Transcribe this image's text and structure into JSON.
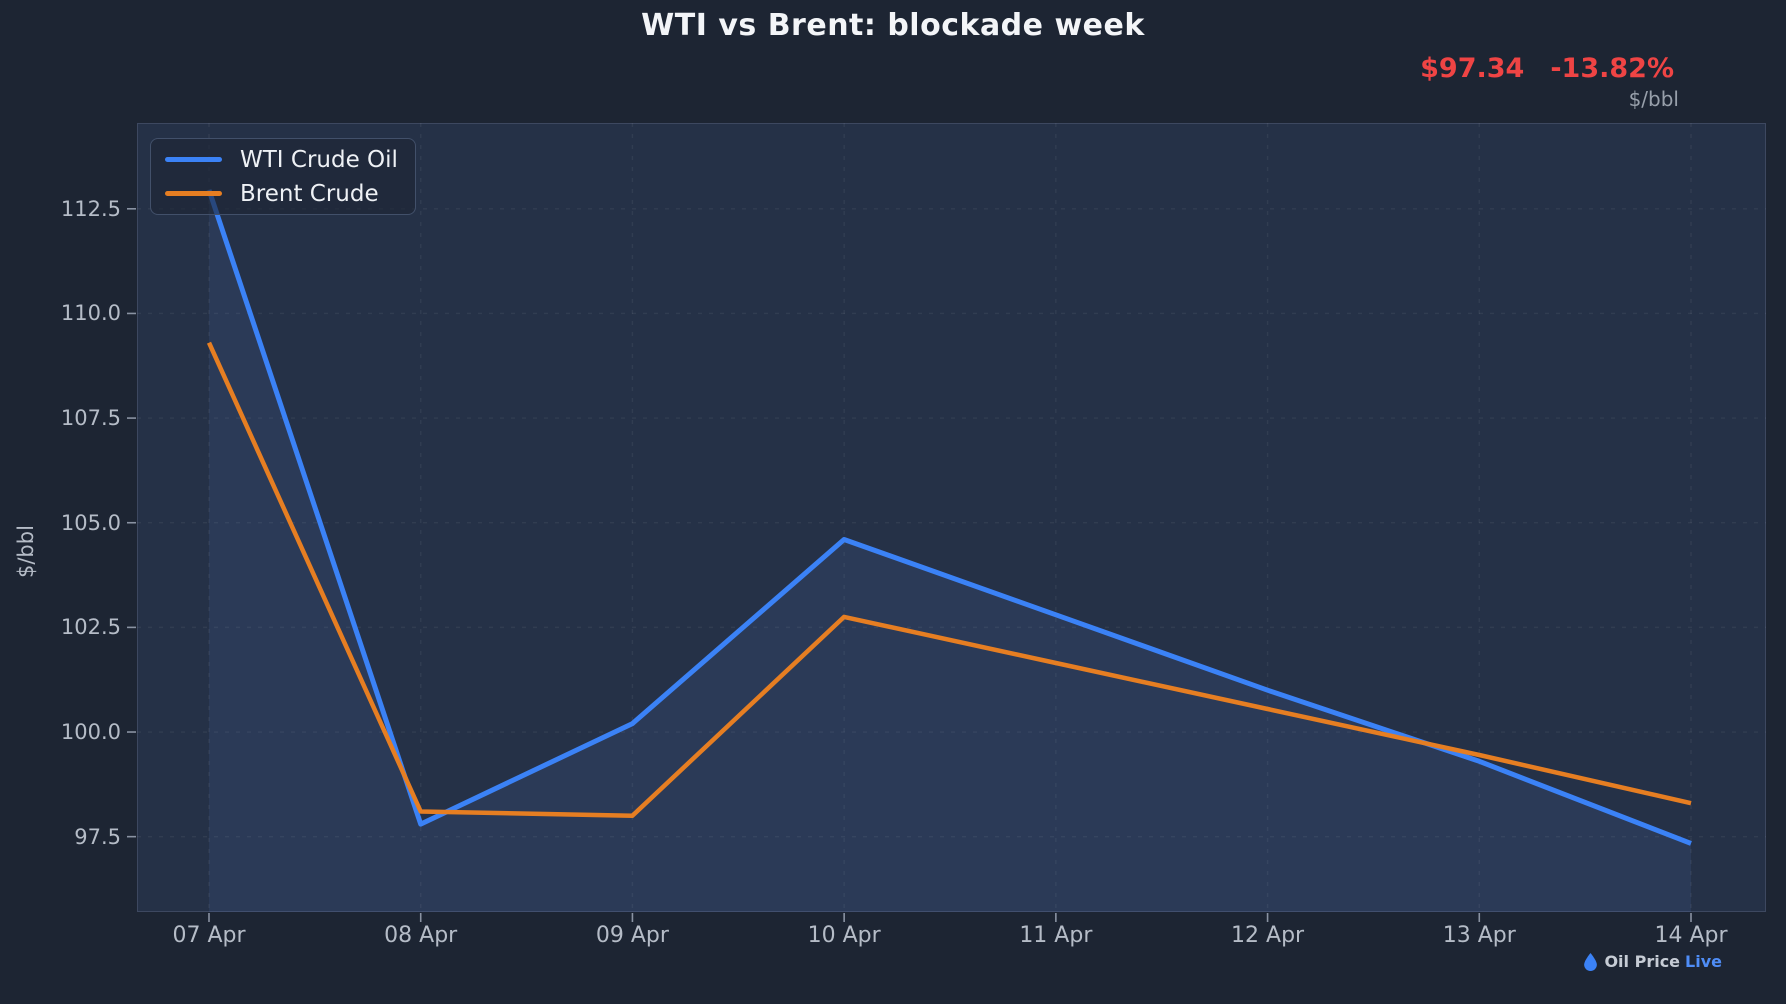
{
  "title": "WTI vs Brent: blockade week",
  "price_display": {
    "last_price": "$97.34",
    "change_pct": "-13.82%",
    "color": "#ef4444"
  },
  "unit_label_top_right": "$/bbl",
  "chart_data": {
    "type": "line",
    "title": "WTI vs Brent: blockade week",
    "xlabel": "",
    "ylabel": "$/bbl",
    "categories": [
      "07 Apr",
      "08 Apr",
      "09 Apr",
      "10 Apr",
      "11 Apr",
      "12 Apr",
      "13 Apr",
      "14 Apr"
    ],
    "series": [
      {
        "name": "WTI Crude Oil",
        "color": "#3b82f6",
        "line_width": 5,
        "area_fill": true,
        "values": [
          112.95,
          97.8,
          100.2,
          104.6,
          102.8,
          101.0,
          99.3,
          97.34
        ]
      },
      {
        "name": "Brent Crude",
        "color": "#e67e22",
        "line_width": 4.5,
        "area_fill": false,
        "values": [
          109.3,
          98.1,
          98.0,
          102.75,
          101.65,
          100.55,
          99.45,
          98.3
        ]
      }
    ],
    "yticks": [
      97.5,
      100.0,
      102.5,
      105.0,
      107.5,
      110.0,
      112.5
    ],
    "ylim": [
      95.7,
      114.55
    ],
    "grid": true,
    "legend_position": "upper-left"
  },
  "branding": {
    "droplet_icon": "droplet-icon",
    "name": "Oil Price",
    "suffix": "Live"
  },
  "colors": {
    "page_bg": "#1d2533",
    "plot_bg": "#253147",
    "grid": "rgba(255,255,255,0.06)",
    "spine": "#3d4860",
    "accent_blue": "#3b82f6",
    "accent_orange": "#e67e22",
    "negative_red": "#ef4444"
  }
}
